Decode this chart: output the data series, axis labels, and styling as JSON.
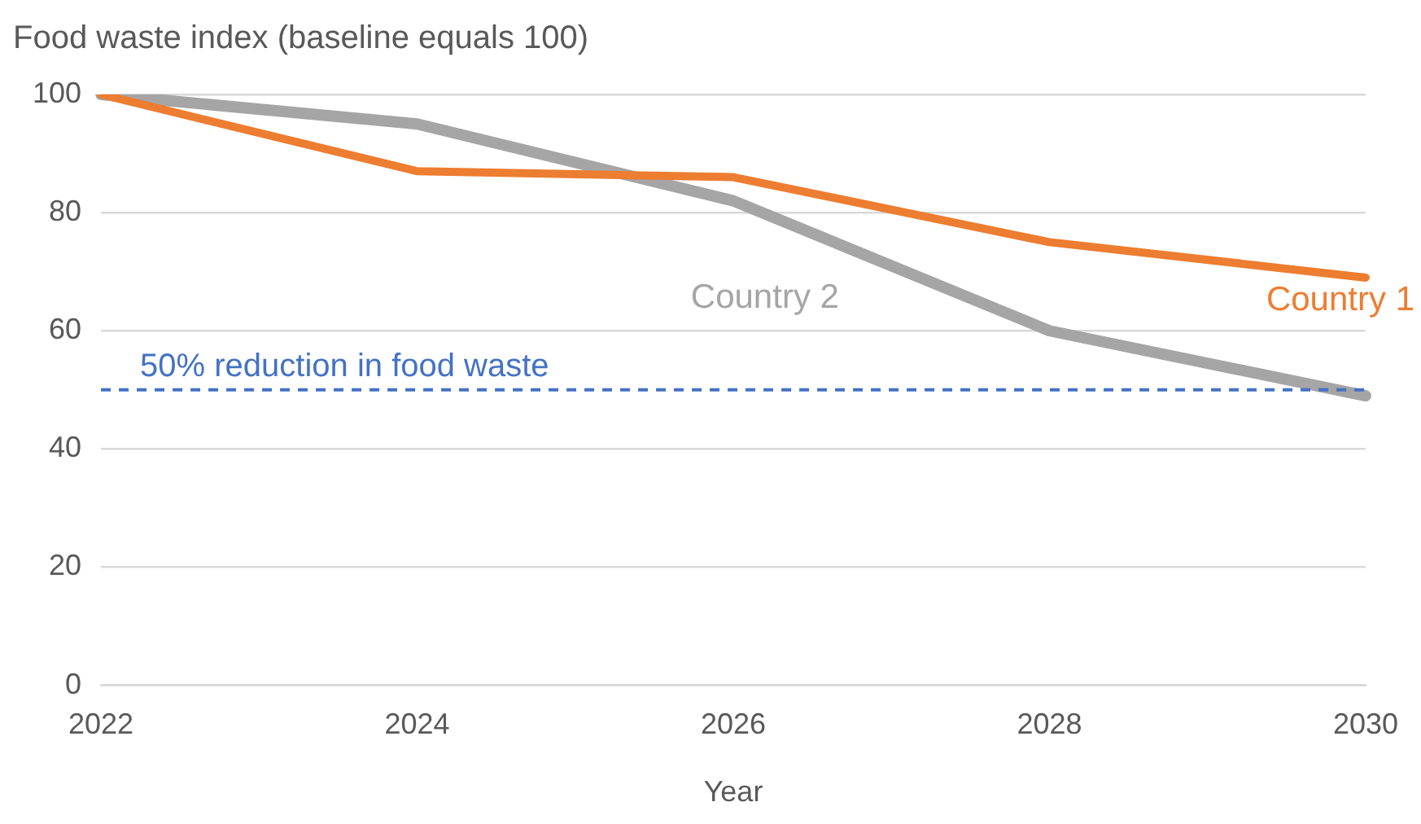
{
  "chart_data": {
    "type": "line",
    "ylabel": "Food waste index (baseline equals 100)",
    "xlabel": "Year",
    "categories": [
      "2022",
      "2024",
      "2026",
      "2028",
      "2030"
    ],
    "series": [
      {
        "name": "Country 1",
        "color": "#ed7d31",
        "values": [
          100,
          87,
          86,
          75,
          69
        ]
      },
      {
        "name": "Country 2",
        "color": "#a5a5a5",
        "values": [
          100,
          95,
          82,
          60,
          49
        ]
      }
    ],
    "ylim": [
      0,
      100
    ],
    "yticks": [
      0,
      20,
      40,
      60,
      80,
      100
    ],
    "grid": "y",
    "legend": false,
    "marker": "none",
    "line_style": "solid",
    "ref_lines": [
      {
        "axis": "y",
        "value": 50,
        "label": "50% reduction in food waste",
        "color": "#4472c4",
        "line_style": "dashed"
      }
    ]
  }
}
